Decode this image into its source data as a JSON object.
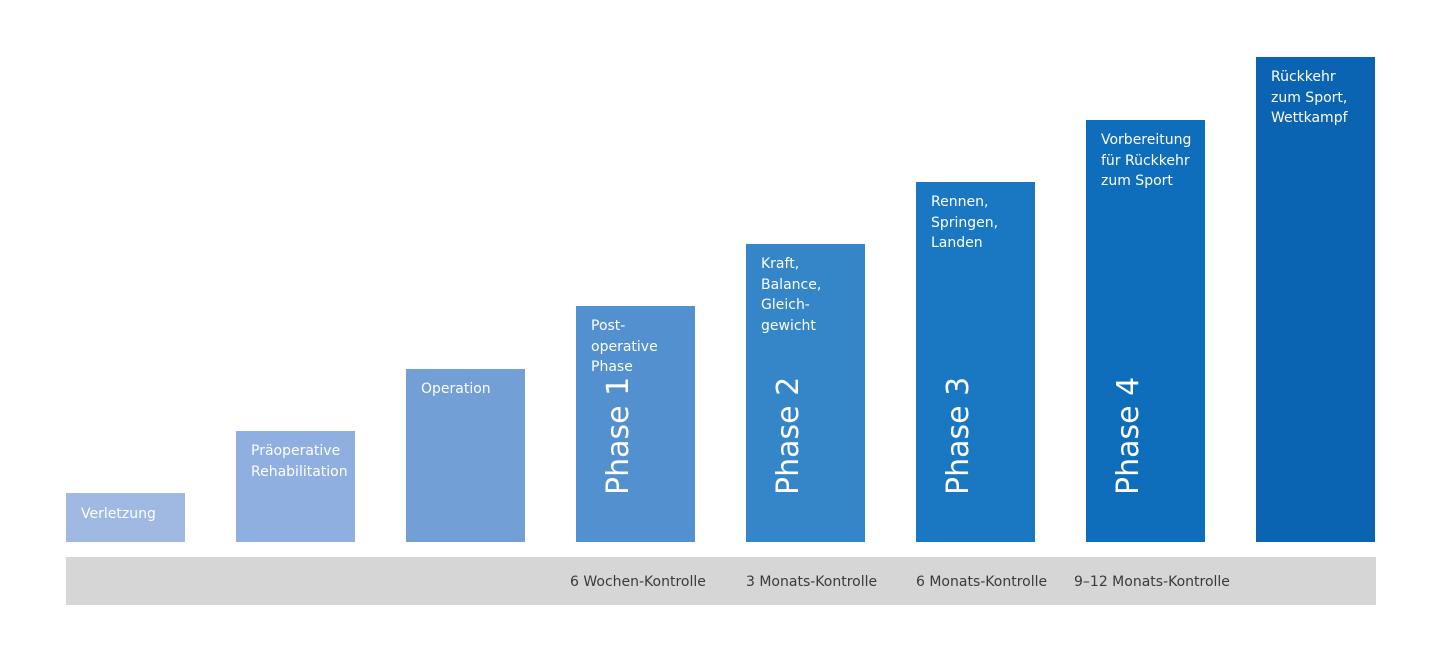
{
  "steps": [
    {
      "label": "Verletzung",
      "phase": "",
      "color": "#9fb9e2"
    },
    {
      "label": "Präoperative\nRehabilitation",
      "phase": "",
      "color": "#8eafdf"
    },
    {
      "label": "Operation",
      "phase": "",
      "color": "#729fd6"
    },
    {
      "label": "Post-\noperative\nPhase",
      "phase": "Phase 1",
      "color": "#5290cf"
    },
    {
      "label": "Kraft,\nBalance,\nGleich-\ngewicht",
      "phase": "Phase 2",
      "color": "#3585c9"
    },
    {
      "label": "Rennen,\nSpringen,\nLanden",
      "phase": "Phase 3",
      "color": "#1a78c2"
    },
    {
      "label": "Vorbereitung\nfür Rückkehr\nzum Sport",
      "phase": "Phase 4",
      "color": "#0f6ebb"
    },
    {
      "label": "Rückkehr\nzum Sport,\nWettkampf",
      "phase": "",
      "color": "#0a64b1"
    }
  ],
  "timeline": {
    "color": "#d6d6d6",
    "checkpoints": [
      "6 Wochen-Kontrolle",
      "3 Monats-Kontrolle",
      "6 Monats-Kontrolle",
      "9–12 Monats-Kontrolle"
    ]
  }
}
